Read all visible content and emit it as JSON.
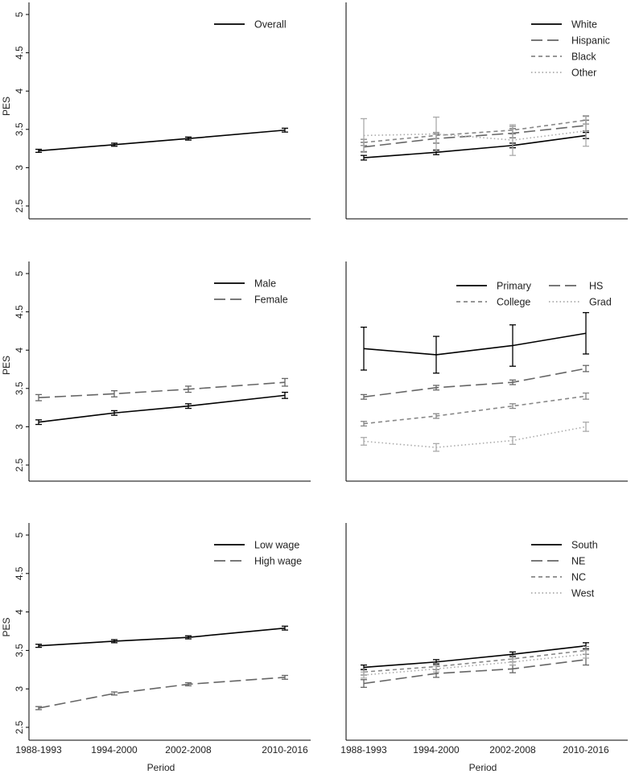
{
  "figure": {
    "x_axis_label": "Period",
    "y_axis_label": "PES"
  },
  "chart_data": [
    {
      "type": "line",
      "title": "",
      "xlabel": "",
      "ylabel": "PES",
      "ylim": [
        2.4,
        5.05
      ],
      "yticks": [
        "5",
        "4.5",
        "4",
        "3.5",
        "3",
        "2.5"
      ],
      "categories": [
        "1988-1993",
        "1994-2000",
        "2002-2008",
        "2010-2016"
      ],
      "show_x_ticklabels": false,
      "legend_position": "top-right",
      "series": [
        {
          "name": "Overall",
          "color": "#000000",
          "dash": "solid",
          "values": [
            3.22,
            3.3,
            3.38,
            3.49
          ],
          "err": [
            0.02,
            0.02,
            0.02,
            0.025
          ]
        }
      ]
    },
    {
      "type": "line",
      "title": "",
      "xlabel": "",
      "ylabel": "",
      "ylim": [
        2.4,
        5.05
      ],
      "yticks": [],
      "categories": [
        "1988-1993",
        "1994-2000",
        "2002-2008",
        "2010-2016"
      ],
      "show_x_ticklabels": false,
      "legend_position": "top-right",
      "series": [
        {
          "name": "White",
          "color": "#000000",
          "dash": "solid",
          "values": [
            3.13,
            3.2,
            3.29,
            3.42
          ],
          "err": [
            0.03,
            0.03,
            0.03,
            0.04
          ]
        },
        {
          "name": "Hispanic",
          "color": "#666666",
          "dash": "long",
          "values": [
            3.27,
            3.38,
            3.45,
            3.55
          ],
          "err": [
            0.06,
            0.06,
            0.06,
            0.07
          ]
        },
        {
          "name": "Black",
          "color": "#888888",
          "dash": "short",
          "values": [
            3.33,
            3.42,
            3.49,
            3.62
          ],
          "err": [
            0.04,
            0.04,
            0.05,
            0.05
          ]
        },
        {
          "name": "Other",
          "color": "#aaaaaa",
          "dash": "dot",
          "values": [
            3.42,
            3.44,
            3.36,
            3.48
          ],
          "err": [
            0.22,
            0.22,
            0.2,
            0.2
          ]
        }
      ]
    },
    {
      "type": "line",
      "title": "",
      "xlabel": "",
      "ylabel": "PES",
      "ylim": [
        2.4,
        5.05
      ],
      "yticks": [
        "5",
        "4.5",
        "4",
        "3.5",
        "3",
        "2.5"
      ],
      "categories": [
        "1988-1993",
        "1994-2000",
        "2002-2008",
        "2010-2016"
      ],
      "show_x_ticklabels": false,
      "legend_position": "top-right",
      "series": [
        {
          "name": "Male",
          "color": "#000000",
          "dash": "solid",
          "values": [
            3.06,
            3.18,
            3.27,
            3.41
          ],
          "err": [
            0.03,
            0.03,
            0.03,
            0.04
          ]
        },
        {
          "name": "Female",
          "color": "#666666",
          "dash": "long",
          "values": [
            3.38,
            3.43,
            3.49,
            3.58
          ],
          "err": [
            0.04,
            0.04,
            0.04,
            0.05
          ]
        }
      ]
    },
    {
      "type": "line",
      "title": "",
      "xlabel": "",
      "ylabel": "",
      "ylim": [
        2.4,
        5.05
      ],
      "yticks": [],
      "categories": [
        "1988-1993",
        "1994-2000",
        "2002-2008",
        "2010-2016"
      ],
      "show_x_ticklabels": false,
      "legend_position": "top-right",
      "series": [
        {
          "name": "Primary",
          "color": "#000000",
          "dash": "solid",
          "values": [
            4.02,
            3.94,
            4.06,
            4.22
          ],
          "err": [
            0.28,
            0.24,
            0.27,
            0.27
          ]
        },
        {
          "name": "HS",
          "color": "#666666",
          "dash": "long",
          "values": [
            3.39,
            3.51,
            3.58,
            3.76
          ],
          "err": [
            0.03,
            0.03,
            0.03,
            0.04
          ]
        },
        {
          "name": "College",
          "color": "#888888",
          "dash": "short",
          "values": [
            3.04,
            3.14,
            3.27,
            3.4
          ],
          "err": [
            0.03,
            0.03,
            0.03,
            0.04
          ]
        },
        {
          "name": "Grad",
          "color": "#aaaaaa",
          "dash": "dot",
          "values": [
            2.81,
            2.73,
            2.82,
            3.0
          ],
          "err": [
            0.05,
            0.05,
            0.05,
            0.06
          ]
        }
      ]
    },
    {
      "type": "line",
      "title": "",
      "xlabel": "Period",
      "ylabel": "PES",
      "ylim": [
        2.4,
        5.05
      ],
      "yticks": [
        "5",
        "4.5",
        "4",
        "3.5",
        "3",
        "2.5"
      ],
      "categories": [
        "1988-1993",
        "1994-2000",
        "2002-2008",
        "2010-2016"
      ],
      "show_x_ticklabels": true,
      "legend_position": "top-right",
      "series": [
        {
          "name": "Low wage",
          "color": "#000000",
          "dash": "solid",
          "values": [
            3.56,
            3.62,
            3.67,
            3.79
          ],
          "err": [
            0.02,
            0.02,
            0.02,
            0.025
          ]
        },
        {
          "name": "High wage",
          "color": "#666666",
          "dash": "long",
          "values": [
            2.75,
            2.94,
            3.06,
            3.15
          ],
          "err": [
            0.02,
            0.02,
            0.02,
            0.025
          ]
        }
      ]
    },
    {
      "type": "line",
      "title": "",
      "xlabel": "Period",
      "ylabel": "",
      "ylim": [
        2.4,
        5.05
      ],
      "yticks": [],
      "categories": [
        "1988-1993",
        "1994-2000",
        "2002-2008",
        "2010-2016"
      ],
      "show_x_ticklabels": true,
      "legend_position": "top-right",
      "series": [
        {
          "name": "South",
          "color": "#000000",
          "dash": "solid",
          "values": [
            3.28,
            3.35,
            3.45,
            3.56
          ],
          "err": [
            0.03,
            0.03,
            0.03,
            0.04
          ]
        },
        {
          "name": "NE",
          "color": "#666666",
          "dash": "long",
          "values": [
            3.07,
            3.2,
            3.26,
            3.38
          ],
          "err": [
            0.05,
            0.05,
            0.05,
            0.07
          ]
        },
        {
          "name": "NC",
          "color": "#888888",
          "dash": "short",
          "values": [
            3.22,
            3.29,
            3.39,
            3.5
          ],
          "err": [
            0.04,
            0.04,
            0.04,
            0.05
          ]
        },
        {
          "name": "West",
          "color": "#aaaaaa",
          "dash": "dot",
          "values": [
            3.18,
            3.26,
            3.35,
            3.45
          ],
          "err": [
            0.04,
            0.04,
            0.04,
            0.05
          ]
        }
      ]
    }
  ]
}
